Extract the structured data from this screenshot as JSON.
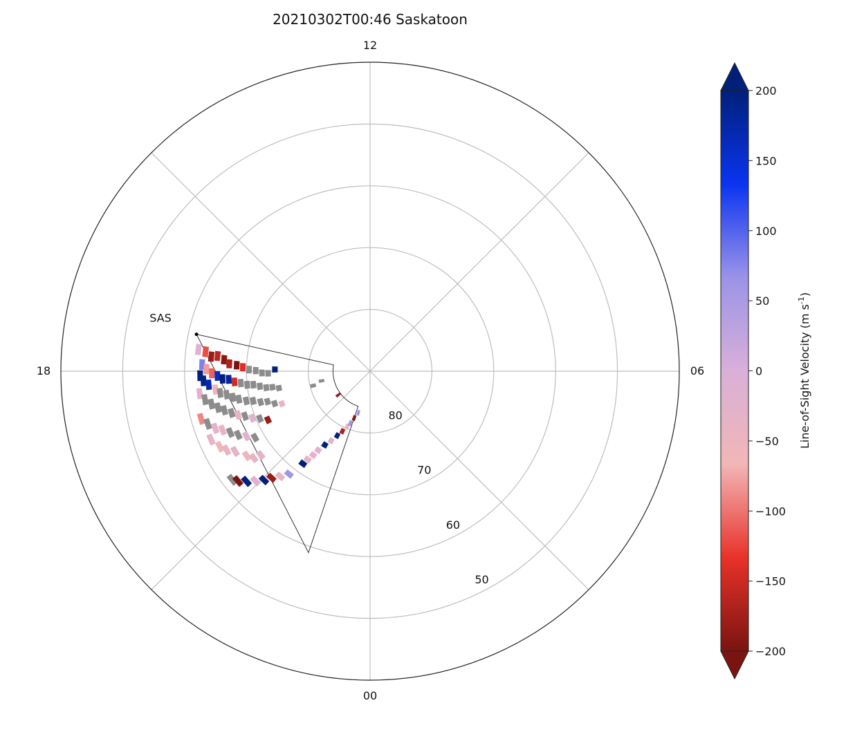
{
  "chart_data": {
    "type": "polar-fan",
    "title": "20210302T00:46  Saskatoon",
    "radar": {
      "code": "SAS",
      "magnetic_local_time_of_site": 17.2,
      "latitude_of_site": 61.3,
      "fov_start_mlt": 17.2,
      "fov_end_mlt": 22.75,
      "fov_start_lat_near": 61.3,
      "fov_end_lat_near": 59.0,
      "fov_far_lat_start": 84.0,
      "fov_far_lat_end": 84.0
    },
    "polar_axes": {
      "angular_unit": "MLT hours",
      "angle_labels": [
        "12",
        "06",
        "00",
        "18"
      ],
      "spoke_hours": [
        0,
        3,
        6,
        9,
        12,
        15,
        18,
        21
      ],
      "radial_unit": "degrees magnetic latitude",
      "lat_range": [
        40,
        90
      ],
      "lat_rings": [
        50,
        60,
        70,
        80
      ],
      "lat_ring_labels": [
        "50",
        "60",
        "70",
        "80"
      ],
      "grid": true
    },
    "colorbar": {
      "label": "Line-of-Sight Velocity (m s",
      "label_sup": "-1",
      "label_end": ")",
      "range": [
        -200,
        200
      ],
      "ticks": [
        200,
        150,
        100,
        50,
        0,
        -50,
        -100,
        -150,
        -200
      ],
      "tick_labels": [
        "200",
        "150",
        "100",
        "50",
        "0",
        "−50",
        "−100",
        "−150",
        "−200"
      ],
      "extend": "both",
      "colors": [
        "#7a1410",
        "#e8322a",
        "#f2b6b6",
        "#d8b0d8",
        "#9b93e8",
        "#0a34f0",
        "#00207a"
      ],
      "ground_scatter_color": "#8c8c8c"
    },
    "cells": [
      {
        "mlt": 17.52,
        "lat": 62.0,
        "v": -20
      },
      {
        "mlt": 17.55,
        "lat": 63.2,
        "v": -120
      },
      {
        "mlt": 17.65,
        "lat": 64.2,
        "v": -180
      },
      {
        "mlt": 17.62,
        "lat": 65.2,
        "v": -160
      },
      {
        "mlt": 17.7,
        "lat": 66.3,
        "v": -190
      },
      {
        "mlt": 17.8,
        "lat": 67.2,
        "v": -170
      },
      {
        "mlt": 17.83,
        "lat": 68.4,
        "v": -200
      },
      {
        "mlt": 17.88,
        "lat": 69.4,
        "v": -140
      },
      {
        "mlt": 17.95,
        "lat": 70.4,
        "v": "g"
      },
      {
        "mlt": 17.98,
        "lat": 71.5,
        "v": "g"
      },
      {
        "mlt": 18.06,
        "lat": 72.5,
        "v": "g"
      },
      {
        "mlt": 18.08,
        "lat": 73.5,
        "v": "g"
      },
      {
        "mlt": 17.93,
        "lat": 74.6,
        "v": 200
      },
      {
        "mlt": 18.95,
        "lat": 80.5,
        "v": "g"
      },
      {
        "mlt": 18.75,
        "lat": 82.0,
        "v": "g"
      },
      {
        "mlt": 20.45,
        "lat": 83.6,
        "v": -190
      },
      {
        "mlt": 17.85,
        "lat": 62.8,
        "v": 80
      },
      {
        "mlt": 17.95,
        "lat": 63.5,
        "v": -80
      },
      {
        "mlt": 18.05,
        "lat": 64.4,
        "v": -110
      },
      {
        "mlt": 18.12,
        "lat": 65.3,
        "v": 160
      },
      {
        "mlt": 18.2,
        "lat": 66.1,
        "v": 200
      },
      {
        "mlt": 18.22,
        "lat": 67.1,
        "v": 180
      },
      {
        "mlt": 18.3,
        "lat": 68.0,
        "v": -150
      },
      {
        "mlt": 18.35,
        "lat": 69.0,
        "v": "g"
      },
      {
        "mlt": 18.42,
        "lat": 70.0,
        "v": "g"
      },
      {
        "mlt": 18.44,
        "lat": 71.0,
        "v": "g"
      },
      {
        "mlt": 18.52,
        "lat": 72.0,
        "v": "g"
      },
      {
        "mlt": 18.6,
        "lat": 73.0,
        "v": "g"
      },
      {
        "mlt": 18.62,
        "lat": 74.0,
        "v": "g"
      },
      {
        "mlt": 18.7,
        "lat": 75.0,
        "v": "g"
      },
      {
        "mlt": 18.1,
        "lat": 62.5,
        "v": 200
      },
      {
        "mlt": 18.22,
        "lat": 63.0,
        "v": 190
      },
      {
        "mlt": 18.32,
        "lat": 63.8,
        "v": 170
      },
      {
        "mlt": 18.45,
        "lat": 64.8,
        "v": -60
      },
      {
        "mlt": 18.55,
        "lat": 65.5,
        "v": "g"
      },
      {
        "mlt": 18.62,
        "lat": 66.5,
        "v": "g"
      },
      {
        "mlt": 18.72,
        "lat": 67.4,
        "v": "g"
      },
      {
        "mlt": 18.8,
        "lat": 68.3,
        "v": "g"
      },
      {
        "mlt": 18.9,
        "lat": 69.4,
        "v": "g"
      },
      {
        "mlt": 18.95,
        "lat": 70.5,
        "v": "g"
      },
      {
        "mlt": 19.05,
        "lat": 71.6,
        "v": "g"
      },
      {
        "mlt": 19.1,
        "lat": 72.7,
        "v": "g"
      },
      {
        "mlt": 19.25,
        "lat": 73.7,
        "v": "g"
      },
      {
        "mlt": 19.35,
        "lat": 74.8,
        "v": -40
      },
      {
        "mlt": 18.5,
        "lat": 62.2,
        "v": -30
      },
      {
        "mlt": 18.65,
        "lat": 62.9,
        "v": "g"
      },
      {
        "mlt": 18.78,
        "lat": 63.8,
        "v": "g"
      },
      {
        "mlt": 18.9,
        "lat": 64.7,
        "v": "g"
      },
      {
        "mlt": 19.0,
        "lat": 65.6,
        "v": "g"
      },
      {
        "mlt": 19.12,
        "lat": 66.6,
        "v": "g"
      },
      {
        "mlt": 19.22,
        "lat": 67.5,
        "v": -40
      },
      {
        "mlt": 19.32,
        "lat": 68.5,
        "v": "g"
      },
      {
        "mlt": 19.45,
        "lat": 69.5,
        "v": -20
      },
      {
        "mlt": 19.55,
        "lat": 70.6,
        "v": "g"
      },
      {
        "mlt": 19.7,
        "lat": 71.7,
        "v": -180
      },
      {
        "mlt": 19.05,
        "lat": 61.6,
        "v": -90
      },
      {
        "mlt": 19.2,
        "lat": 62.4,
        "v": "g"
      },
      {
        "mlt": 19.35,
        "lat": 63.3,
        "v": -30
      },
      {
        "mlt": 19.45,
        "lat": 64.3,
        "v": -40
      },
      {
        "mlt": 19.58,
        "lat": 65.3,
        "v": "g"
      },
      {
        "mlt": 19.72,
        "lat": 66.3,
        "v": "g"
      },
      {
        "mlt": 19.85,
        "lat": 67.4,
        "v": -20
      },
      {
        "mlt": 20.0,
        "lat": 68.5,
        "v": "g"
      },
      {
        "mlt": 19.55,
        "lat": 62.0,
        "v": -40
      },
      {
        "mlt": 19.78,
        "lat": 62.8,
        "v": -60
      },
      {
        "mlt": 19.92,
        "lat": 63.5,
        "v": -40
      },
      {
        "mlt": 20.05,
        "lat": 64.6,
        "v": -30
      },
      {
        "mlt": 20.3,
        "lat": 65.8,
        "v": -50
      },
      {
        "mlt": 20.45,
        "lat": 66.5,
        "v": -40
      },
      {
        "mlt": 20.5,
        "lat": 67.7,
        "v": -30
      },
      {
        "mlt": 20.55,
        "lat": 61.6,
        "v": "g"
      },
      {
        "mlt": 20.65,
        "lat": 62.2,
        "v": -200
      },
      {
        "mlt": 20.78,
        "lat": 63.2,
        "v": 200
      },
      {
        "mlt": 20.92,
        "lat": 64.3,
        "v": -20
      },
      {
        "mlt": 21.05,
        "lat": 65.4,
        "v": 200
      },
      {
        "mlt": 21.15,
        "lat": 66.5,
        "v": -180
      },
      {
        "mlt": 21.3,
        "lat": 67.6,
        "v": -40
      },
      {
        "mlt": 21.45,
        "lat": 68.8,
        "v": 60
      },
      {
        "mlt": 21.6,
        "lat": 71.5,
        "v": 200
      },
      {
        "mlt": 21.65,
        "lat": 72.5,
        "v": -40
      },
      {
        "mlt": 21.72,
        "lat": 73.6,
        "v": -30
      },
      {
        "mlt": 21.78,
        "lat": 74.7,
        "v": -20
      },
      {
        "mlt": 21.9,
        "lat": 76.0,
        "v": 200
      },
      {
        "mlt": 22.05,
        "lat": 77.1,
        "v": -30
      },
      {
        "mlt": 22.2,
        "lat": 78.3,
        "v": 200
      },
      {
        "mlt": 22.35,
        "lat": 79.3,
        "v": -170
      },
      {
        "mlt": 22.5,
        "lat": 80.3,
        "v": -40
      },
      {
        "mlt": 22.62,
        "lat": 81.0,
        "v": 60
      },
      {
        "mlt": 22.75,
        "lat": 82.0,
        "v": -190
      },
      {
        "mlt": 22.95,
        "lat": 83.0,
        "v": 60
      }
    ]
  }
}
